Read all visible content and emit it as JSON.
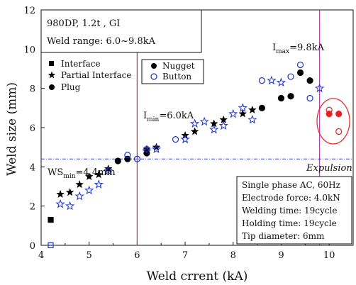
{
  "chart_data": {
    "type": "scatter",
    "xlabel": "Weld crrent (kA)",
    "ylabel": "Weld size (mm)",
    "xlim": [
      4,
      10.5
    ],
    "ylim": [
      0,
      12
    ],
    "x_ticks": [
      "4",
      "5",
      "6",
      "7",
      "8",
      "9",
      "10"
    ],
    "y_ticks": [
      "0",
      "2",
      "4",
      "6",
      "8",
      "10",
      "12"
    ],
    "info_box": {
      "line1": "980DP, 1.2t , GI",
      "line2": "Weld range: 6.0~9.8kA"
    },
    "legend_fracture": [
      "Interface",
      "Partial Interface",
      "Plug"
    ],
    "legend_type": [
      "Nugget",
      "Button"
    ],
    "conditions": [
      "Single phase AC, 60Hz",
      "Electrode force: 4.0kN",
      "Welding time: 19cycle",
      "Holding time: 19cycle",
      "Tip diameter: 6mm"
    ],
    "annotations": {
      "imin_main": "I",
      "imin_sub": "min",
      "imin_value": "=6.0kA",
      "imax_main": "I",
      "imax_sub": "max",
      "imax_value": "=9.8kA",
      "ws_main": "WS",
      "ws_sub": "min",
      "ws_value": "=4.4mm",
      "expulsion": "Expulsion"
    },
    "reference_lines": {
      "i_min": 6.0,
      "i_max": 9.8,
      "ws_min": 4.4
    },
    "colors": {
      "vertical_lines": "#cc3333",
      "imax_line": "#b040b0",
      "ws_line": "#3344cc",
      "button": "#1a33cc",
      "expulsion": "#e82020"
    },
    "series": [
      {
        "name": "Interface",
        "kind": "nugget",
        "marker": "square",
        "x": [
          4.2
        ],
        "y": [
          1.3
        ]
      },
      {
        "name": "Interface",
        "kind": "button",
        "marker": "square",
        "x": [
          4.2
        ],
        "y": [
          0.0
        ]
      },
      {
        "name": "Partial Interface",
        "kind": "nugget",
        "marker": "star",
        "x": [
          4.4,
          4.6,
          4.8,
          5.0,
          5.2,
          5.4,
          6.2,
          6.4,
          7.0,
          7.2,
          7.6,
          7.8,
          8.2,
          8.4
        ],
        "y": [
          2.6,
          2.7,
          3.1,
          3.5,
          3.6,
          3.9,
          4.9,
          5.0,
          5.6,
          5.8,
          6.2,
          6.4,
          6.7,
          6.9
        ]
      },
      {
        "name": "Partial Interface",
        "kind": "button",
        "marker": "star",
        "x": [
          4.4,
          4.6,
          4.8,
          5.0,
          5.2,
          5.4,
          6.2,
          6.4,
          7.0,
          7.2,
          7.4,
          7.6,
          7.8,
          8.0,
          8.2,
          8.4,
          8.8,
          9.0,
          9.8
        ],
        "y": [
          2.1,
          2.0,
          2.5,
          2.8,
          3.1,
          3.8,
          4.8,
          4.9,
          5.4,
          6.2,
          6.3,
          5.9,
          6.1,
          6.7,
          7.0,
          6.4,
          8.4,
          8.3,
          8.0
        ]
      },
      {
        "name": "Plug",
        "kind": "nugget",
        "marker": "circle",
        "x": [
          5.6,
          5.8,
          6.2,
          8.6,
          9.0,
          9.2,
          9.4,
          9.6
        ],
        "y": [
          4.3,
          4.4,
          4.7,
          7.0,
          7.5,
          7.6,
          8.8,
          8.4
        ]
      },
      {
        "name": "Plug",
        "kind": "button",
        "marker": "circle",
        "x": [
          5.8,
          6.0,
          6.2,
          6.8,
          8.6,
          9.2,
          9.4,
          9.6
        ],
        "y": [
          4.6,
          4.4,
          4.9,
          5.4,
          8.4,
          8.6,
          9.2,
          7.5
        ]
      },
      {
        "name": "Expulsion",
        "kind": "nugget",
        "marker": "circle",
        "x": [
          10.0,
          10.2
        ],
        "y": [
          6.7,
          6.7
        ]
      },
      {
        "name": "Expulsion",
        "kind": "button",
        "marker": "circle",
        "x": [
          10.0,
          10.2
        ],
        "y": [
          6.9,
          5.8
        ]
      }
    ]
  }
}
